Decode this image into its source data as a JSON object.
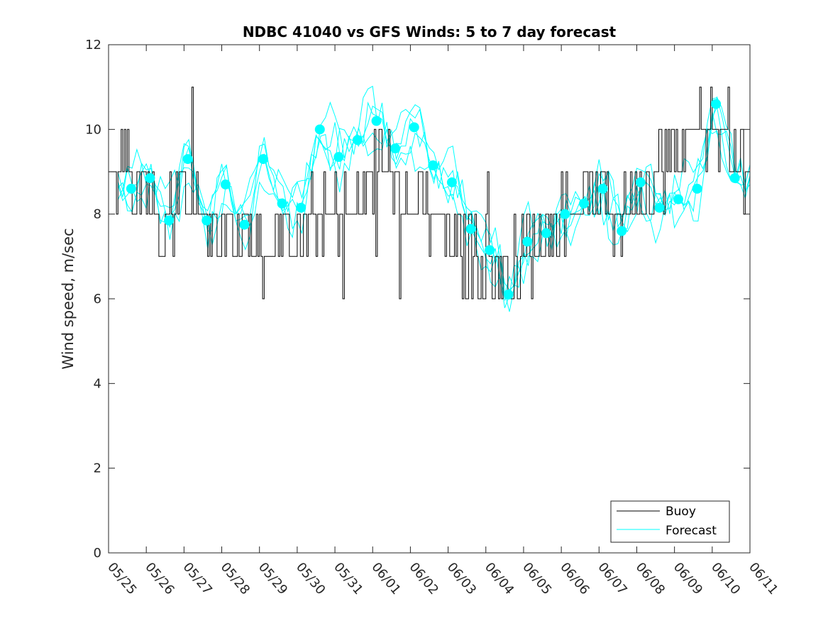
{
  "chart_data": {
    "type": "line",
    "title": "NDBC 41040 vs GFS Winds: 5 to 7 day forecast",
    "xlabel": "",
    "ylabel": "Wind speed, m/sec",
    "xlim": [
      "05/25",
      "06/11"
    ],
    "ylim": [
      0,
      12
    ],
    "y_ticks": [
      0,
      2,
      4,
      6,
      8,
      10,
      12
    ],
    "x_tick_labels": [
      "05/25",
      "05/26",
      "05/27",
      "05/28",
      "05/29",
      "05/30",
      "05/31",
      "06/01",
      "06/02",
      "06/03",
      "06/04",
      "06/05",
      "06/06",
      "06/07",
      "06/08",
      "06/09",
      "06/10",
      "06/11"
    ],
    "grid": false,
    "legend_position": "bottom-right",
    "colors": {
      "buoy": "#000000",
      "forecast": "#00ffff"
    },
    "series": [
      {
        "name": "Buoy",
        "x_days": [
          0.0,
          0.5,
          1.0,
          1.5,
          2.0,
          2.5,
          3.0,
          3.5,
          4.0,
          4.5,
          5.0,
          5.5,
          6.0,
          6.5,
          7.0,
          7.5,
          8.0,
          8.5,
          9.0,
          9.5,
          10.0,
          10.5,
          11.0,
          11.5,
          12.0,
          12.5,
          13.0,
          13.5,
          14.0,
          14.5,
          15.0,
          15.5,
          16.0,
          16.5,
          17.0
        ],
        "values": [
          9.0,
          9.0,
          8.5,
          8.0,
          8.5,
          8.0,
          7.5,
          7.5,
          7.0,
          7.5,
          7.5,
          8.0,
          8.0,
          8.0,
          9.0,
          9.0,
          8.0,
          8.0,
          7.5,
          7.0,
          7.0,
          6.5,
          7.0,
          7.5,
          8.0,
          8.5,
          8.5,
          8.0,
          8.5,
          9.0,
          9.5,
          10.0,
          10.0,
          9.5,
          9.5
        ]
      },
      {
        "name": "Forecast",
        "markers_x_days": [
          0.6,
          1.1,
          1.6,
          2.1,
          2.6,
          3.1,
          3.6,
          4.1,
          4.6,
          5.1,
          5.6,
          6.1,
          6.6,
          7.1,
          7.6,
          8.1,
          8.6,
          9.1,
          9.6,
          10.1,
          10.6,
          11.1,
          11.6,
          12.1,
          12.6,
          13.1,
          13.6,
          14.1,
          14.6,
          15.1,
          15.6,
          16.1,
          16.6
        ],
        "markers_values": [
          8.6,
          8.85,
          7.85,
          9.3,
          7.85,
          8.7,
          7.75,
          9.3,
          8.25,
          8.15,
          10.0,
          9.35,
          9.75,
          10.2,
          9.55,
          10.05,
          9.15,
          8.75,
          7.65,
          7.15,
          6.1,
          7.35,
          7.55,
          8.0,
          8.25,
          8.6,
          7.6,
          8.75,
          8.15,
          8.35,
          8.6,
          10.6,
          8.85
        ]
      }
    ]
  }
}
